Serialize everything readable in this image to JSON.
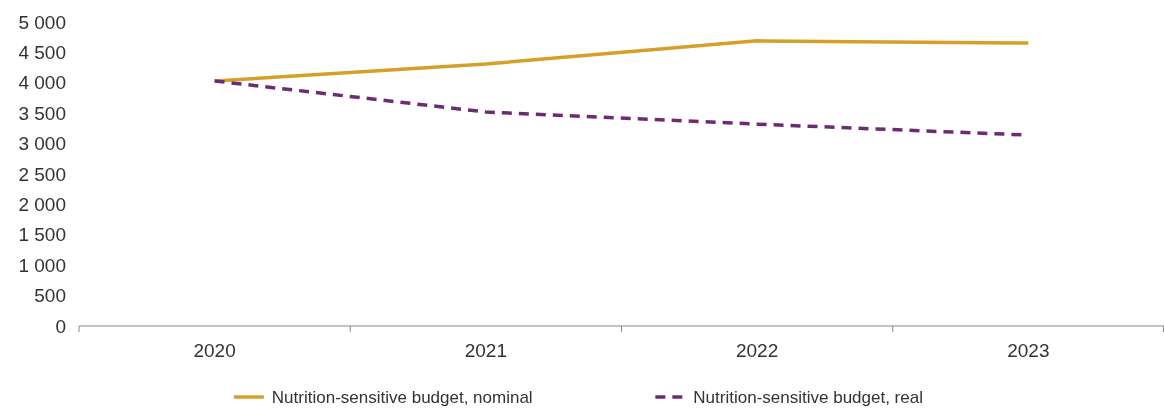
{
  "chart_data": {
    "type": "line",
    "categories": [
      "2020",
      "2021",
      "2022",
      "2023"
    ],
    "series": [
      {
        "name": "Nutrition-sensitive budget, nominal",
        "color": "#d4a02a",
        "line_style": "solid",
        "values": [
          4030,
          4310,
          4690,
          4655
        ]
      },
      {
        "name": "Nutrition-sensitive budget, real",
        "color": "#6b2d6e",
        "line_style": "dashed",
        "values": [
          4030,
          3520,
          3320,
          3140
        ]
      }
    ],
    "ylim": [
      0,
      5000
    ],
    "yticks": [
      0,
      500,
      {
        "value": 1000,
        "label": "1 000"
      },
      {
        "value": 1500,
        "label": "1 500"
      },
      {
        "value": 2000,
        "label": "2 000"
      },
      {
        "value": 2500,
        "label": "2 500"
      },
      {
        "value": 3000,
        "label": "3 000"
      },
      {
        "value": 3500,
        "label": "3 500"
      },
      {
        "value": 4000,
        "label": "4 000"
      },
      {
        "value": 4500,
        "label": "4 500"
      },
      {
        "value": 5000,
        "label": "5 000"
      }
    ],
    "grid": false,
    "legend": "bottom",
    "marker": "none"
  }
}
